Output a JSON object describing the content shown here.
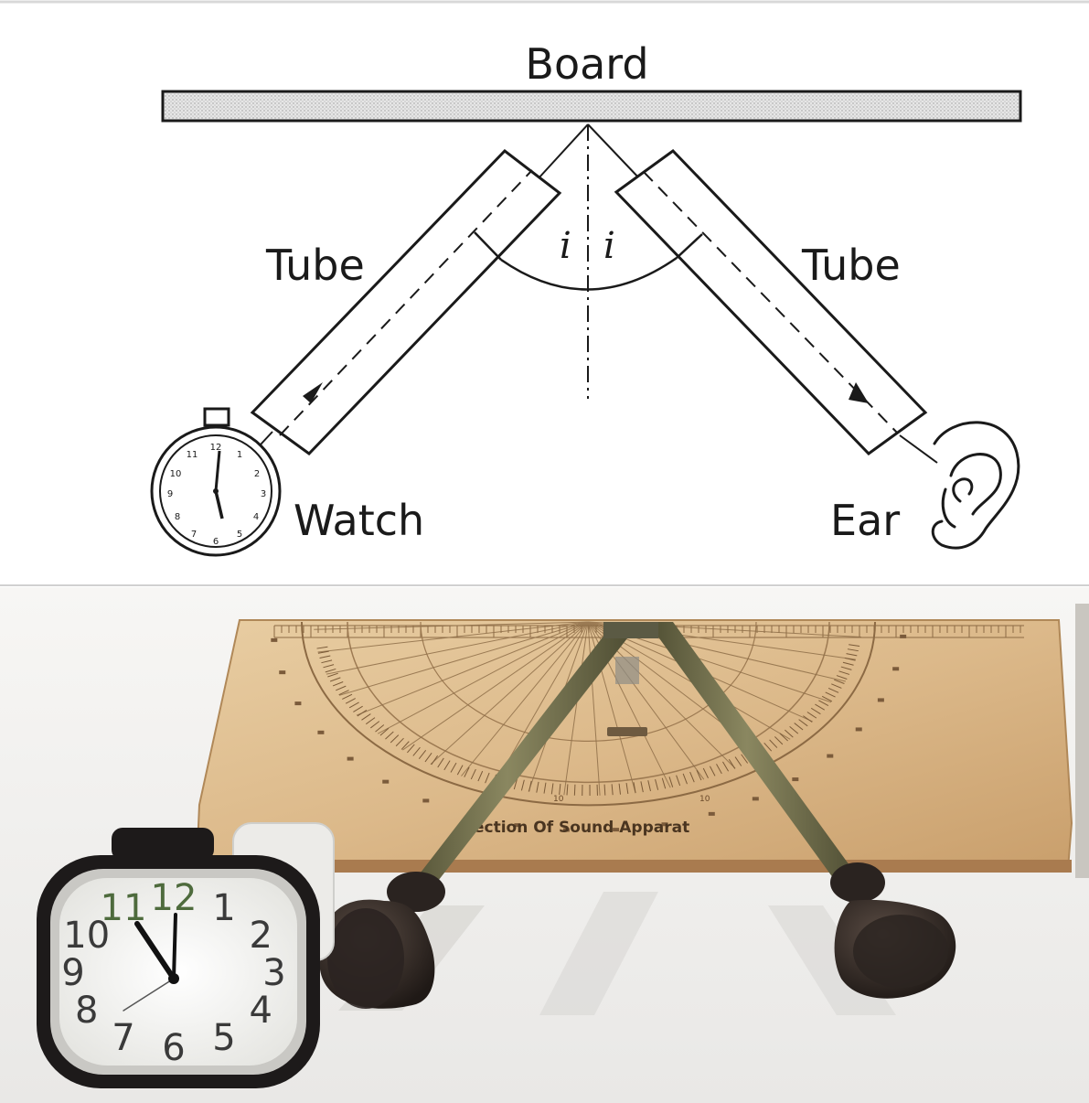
{
  "diagram": {
    "labels": {
      "board": "Board",
      "tube_left": "Tube",
      "tube_right": "Tube",
      "watch": "Watch",
      "ear": "Ear",
      "angle_incidence": "i",
      "angle_reflection": "i"
    }
  },
  "photo": {
    "apparatus_text": "ection Of Sound Apparat",
    "clock_numbers": [
      "12",
      "1",
      "2",
      "3",
      "4",
      "5",
      "6",
      "7",
      "8",
      "9",
      "10",
      "11"
    ],
    "protractor_ticks": [
      "10",
      "10"
    ],
    "colors": {
      "board_wood": "#dcb98a",
      "tube_metal": "#6f6d4a",
      "funnel": "#2c2420",
      "clock_body": "#1d1a1a"
    }
  }
}
